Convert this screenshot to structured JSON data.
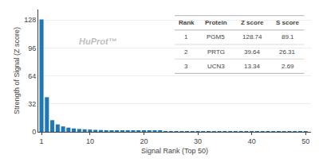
{
  "chart_data": {
    "type": "bar",
    "xlabel": "Signal Rank (Top 50)",
    "ylabel": "Strength of Signal (Z score)",
    "x": [
      1,
      2,
      3,
      4,
      5,
      6,
      7,
      8,
      9,
      10,
      11,
      12,
      13,
      14,
      15,
      16,
      17,
      18,
      19,
      20,
      21,
      22,
      23,
      24,
      25,
      26,
      27,
      28,
      29,
      30,
      31,
      32,
      33,
      34,
      35,
      36,
      37,
      38,
      39,
      40,
      41,
      42,
      43,
      44,
      45,
      46,
      47,
      48,
      49,
      50
    ],
    "values": [
      128.74,
      39.64,
      13.34,
      8.5,
      6.2,
      4.8,
      3.9,
      3.3,
      2.9,
      2.6,
      2.3,
      2.1,
      1.9,
      1.75,
      1.6,
      1.5,
      1.4,
      1.3,
      1.2,
      1.1,
      1.05,
      1.0,
      0.95,
      0.9,
      0.85,
      0.82,
      0.78,
      0.74,
      0.71,
      0.68,
      0.65,
      0.63,
      0.6,
      0.58,
      0.56,
      0.54,
      0.52,
      0.5,
      0.48,
      0.46,
      0.45,
      0.43,
      0.42,
      0.4,
      0.39,
      0.38,
      0.36,
      0.35,
      0.34,
      0.33
    ],
    "xlim": [
      0.4,
      51
    ],
    "xticks": [
      1,
      10,
      20,
      30,
      40,
      50
    ],
    "ylim": [
      0,
      140
    ],
    "yticks": [
      0,
      32,
      64,
      96,
      128
    ],
    "grid": true,
    "annotations": [
      "HuProt™"
    ],
    "table": {
      "headers": [
        "Rank",
        "Protein",
        "Z score",
        "S score"
      ],
      "rows": [
        [
          "1",
          "PGM5",
          "128.74",
          "89.1"
        ],
        [
          "2",
          "PRTG",
          "39.64",
          "26.31"
        ],
        [
          "3",
          "UCN3",
          "13.34",
          "2.69"
        ]
      ]
    }
  }
}
